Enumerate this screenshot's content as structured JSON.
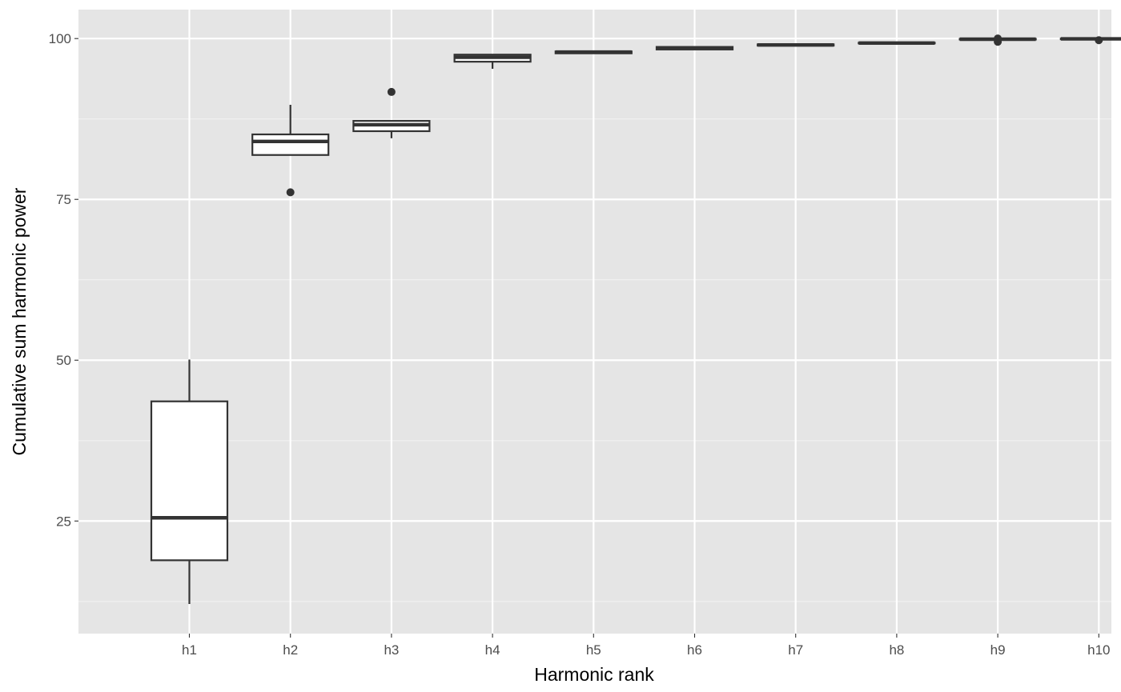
{
  "chart_data": {
    "type": "boxplot",
    "xlabel": "Harmonic rank",
    "ylabel": "Cumulative sum harmonic power",
    "categories": [
      "h1",
      "h2",
      "h3",
      "h4",
      "h5",
      "h6",
      "h7",
      "h8",
      "h9",
      "h10"
    ],
    "ylim": [
      7.5,
      104.5
    ],
    "yticks": [
      25,
      50,
      75,
      100
    ],
    "y_minor_ticks": [
      12.5,
      37.5,
      62.5,
      87.5
    ],
    "grid": true,
    "boxes": [
      {
        "category": "h1",
        "whisker_low": 12.1,
        "q1": 18.9,
        "median": 25.5,
        "q3": 43.6,
        "whisker_high": 50.1,
        "outliers": []
      },
      {
        "category": "h2",
        "whisker_low": 81.9,
        "q1": 81.9,
        "median": 84.0,
        "q3": 85.1,
        "whisker_high": 89.7,
        "outliers": [
          76.1
        ]
      },
      {
        "category": "h3",
        "whisker_low": 84.5,
        "q1": 85.6,
        "median": 86.6,
        "q3": 87.2,
        "whisker_high": 87.2,
        "outliers": [
          91.7
        ]
      },
      {
        "category": "h4",
        "whisker_low": 95.3,
        "q1": 96.4,
        "median": 97.1,
        "q3": 97.5,
        "whisker_high": 97.6,
        "outliers": []
      },
      {
        "category": "h5",
        "whisker_low": 97.6,
        "q1": 97.7,
        "median": 97.9,
        "q3": 98.0,
        "whisker_high": 98.1,
        "outliers": []
      },
      {
        "category": "h6",
        "whisker_low": 98.2,
        "q1": 98.3,
        "median": 98.5,
        "q3": 98.7,
        "whisker_high": 98.8,
        "outliers": []
      },
      {
        "category": "h7",
        "whisker_low": 98.8,
        "q1": 98.9,
        "median": 99.0,
        "q3": 99.1,
        "whisker_high": 99.2,
        "outliers": []
      },
      {
        "category": "h8",
        "whisker_low": 99.2,
        "q1": 99.25,
        "median": 99.3,
        "q3": 99.35,
        "whisker_high": 99.4,
        "outliers": []
      },
      {
        "category": "h9",
        "whisker_low": 99.8,
        "q1": 99.85,
        "median": 99.9,
        "q3": 99.95,
        "whisker_high": 100.0,
        "outliers": [
          99.5,
          100.0
        ]
      },
      {
        "category": "h10",
        "whisker_low": 99.85,
        "q1": 99.9,
        "median": 99.95,
        "q3": 100.0,
        "whisker_high": 100.0,
        "outliers": [
          99.75
        ]
      }
    ],
    "colors": {
      "panel_background": "#e5e5e5",
      "grid_major": "#ffffff",
      "grid_minor": "#f2f2f2",
      "box_fill": "#ffffff",
      "box_stroke": "#333333",
      "tick_text": "#4d4d4d",
      "axis_title": "#000000"
    }
  }
}
